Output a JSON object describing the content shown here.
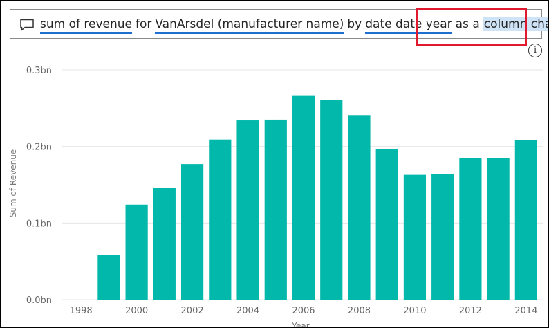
{
  "qa": {
    "tokens": [
      {
        "text": "sum of revenue",
        "underline": true
      },
      {
        "text": "for",
        "underline": false
      },
      {
        "text": "VanArsdel (manufacturer name)",
        "underline": true
      },
      {
        "text": "by",
        "underline": false
      },
      {
        "text": "date date year",
        "underline": true
      },
      {
        "text": "as a",
        "underline": false
      },
      {
        "text": "column chart",
        "underline": false,
        "selected": true
      }
    ],
    "info_glyph": "i"
  },
  "chart_data": {
    "type": "bar",
    "x": [
      1999,
      2000,
      2001,
      2002,
      2003,
      2004,
      2005,
      2006,
      2007,
      2008,
      2009,
      2010,
      2011,
      2012,
      2013,
      2014
    ],
    "values": [
      0.058,
      0.124,
      0.146,
      0.177,
      0.209,
      0.234,
      0.235,
      0.266,
      0.261,
      0.241,
      0.197,
      0.163,
      0.164,
      0.185,
      0.185,
      0.208
    ],
    "xlim": [
      1997.3,
      2014.6
    ],
    "ylim": [
      0,
      0.3
    ],
    "x_ticks": [
      1998,
      2000,
      2002,
      2004,
      2006,
      2008,
      2010,
      2012,
      2014
    ],
    "x_tick_labels": [
      "1998",
      "2000",
      "2002",
      "2004",
      "2006",
      "2008",
      "2010",
      "2012",
      "2014"
    ],
    "y_ticks": [
      0,
      0.1,
      0.2,
      0.3
    ],
    "y_tick_labels": [
      "0.0bn",
      "0.1bn",
      "0.2bn",
      "0.3bn"
    ],
    "xlabel": "Year",
    "ylabel": "Sum of Revenue",
    "bar_color": "#01b8aa",
    "grid": true
  }
}
